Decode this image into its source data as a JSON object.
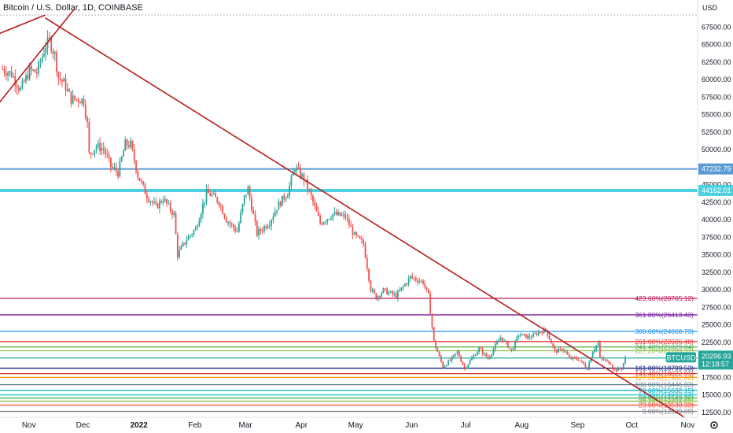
{
  "header": {
    "title": "Bitcoin / U.S. Dollar, 1D, COINBASE"
  },
  "colors": {
    "bull": "#26a69a",
    "bear": "#ef5350",
    "trendline": "#b71c1c",
    "blue_level": "#5b9bd5",
    "cyan_level": "#4dd0e1",
    "price_tag": "#26a69a"
  },
  "chart_data": {
    "type": "candlestick",
    "title": "Bitcoin / U.S. Dollar, 1D, COINBASE",
    "yaxis_unit": "USD",
    "ylim": [
      11000,
      69500
    ],
    "yticks": [
      "67500.00",
      "65000.00",
      "62500.00",
      "60000.00",
      "57500.00",
      "55000.00",
      "52500.00",
      "50000.00",
      "47500.00",
      "45000.00",
      "42500.00",
      "40000.00",
      "37500.00",
      "35000.00",
      "32500.00",
      "30000.00",
      "27500.00",
      "25000.00",
      "22500.00",
      "20000.00",
      "17500.00",
      "15000.00",
      "12500.00"
    ],
    "xtick_labels": [
      {
        "label": "Nov",
        "date": "2021-11-01",
        "bold": false
      },
      {
        "label": "Dec",
        "date": "2021-12-01",
        "bold": false
      },
      {
        "label": "2022",
        "date": "2022-01-01",
        "bold": true
      },
      {
        "label": "Feb",
        "date": "2022-02-01",
        "bold": false
      },
      {
        "label": "Mar",
        "date": "2022-03-01",
        "bold": false
      },
      {
        "label": "Apr",
        "date": "2022-04-01",
        "bold": false
      },
      {
        "label": "May",
        "date": "2022-05-01",
        "bold": false
      },
      {
        "label": "Jun",
        "date": "2022-06-01",
        "bold": false
      },
      {
        "label": "Jul",
        "date": "2022-07-01",
        "bold": false
      },
      {
        "label": "Aug",
        "date": "2022-08-01",
        "bold": false
      },
      {
        "label": "Sep",
        "date": "2022-09-01",
        "bold": false
      },
      {
        "label": "Oct",
        "date": "2022-10-01",
        "bold": false
      },
      {
        "label": "Nov",
        "date": "2022-11-01",
        "bold": false
      }
    ],
    "series_close": [
      {
        "date": "2021-10-17",
        "close": 61500
      },
      {
        "date": "2021-10-22",
        "close": 60800
      },
      {
        "date": "2021-10-27",
        "close": 58500
      },
      {
        "date": "2021-11-01",
        "close": 61300
      },
      {
        "date": "2021-11-05",
        "close": 61000
      },
      {
        "date": "2021-11-10",
        "close": 64900
      },
      {
        "date": "2021-11-12",
        "close": 65500
      },
      {
        "date": "2021-11-15",
        "close": 63500
      },
      {
        "date": "2021-11-17",
        "close": 60300
      },
      {
        "date": "2021-11-20",
        "close": 59500
      },
      {
        "date": "2021-11-24",
        "close": 57200
      },
      {
        "date": "2021-11-28",
        "close": 57200
      },
      {
        "date": "2021-12-01",
        "close": 57000
      },
      {
        "date": "2021-12-03",
        "close": 53600
      },
      {
        "date": "2021-12-04",
        "close": 49300
      },
      {
        "date": "2021-12-08",
        "close": 50500
      },
      {
        "date": "2021-12-12",
        "close": 50100
      },
      {
        "date": "2021-12-16",
        "close": 47600
      },
      {
        "date": "2021-12-20",
        "close": 46700
      },
      {
        "date": "2021-12-24",
        "close": 50800
      },
      {
        "date": "2021-12-27",
        "close": 50700
      },
      {
        "date": "2021-12-31",
        "close": 46300
      },
      {
        "date": "2022-01-05",
        "close": 43400
      },
      {
        "date": "2022-01-10",
        "close": 41800
      },
      {
        "date": "2022-01-14",
        "close": 43000
      },
      {
        "date": "2022-01-20",
        "close": 40700
      },
      {
        "date": "2022-01-22",
        "close": 35000
      },
      {
        "date": "2022-01-27",
        "close": 37200
      },
      {
        "date": "2022-02-01",
        "close": 38700
      },
      {
        "date": "2022-02-07",
        "close": 43800
      },
      {
        "date": "2022-02-10",
        "close": 43500
      },
      {
        "date": "2022-02-14",
        "close": 42500
      },
      {
        "date": "2022-02-18",
        "close": 40000
      },
      {
        "date": "2022-02-24",
        "close": 38300
      },
      {
        "date": "2022-02-28",
        "close": 43200
      },
      {
        "date": "2022-03-02",
        "close": 44400
      },
      {
        "date": "2022-03-07",
        "close": 38000
      },
      {
        "date": "2022-03-14",
        "close": 39700
      },
      {
        "date": "2022-03-18",
        "close": 41800
      },
      {
        "date": "2022-03-24",
        "close": 43900
      },
      {
        "date": "2022-03-28",
        "close": 47500
      },
      {
        "date": "2022-04-02",
        "close": 45800
      },
      {
        "date": "2022-04-06",
        "close": 43200
      },
      {
        "date": "2022-04-11",
        "close": 39500
      },
      {
        "date": "2022-04-18",
        "close": 40800
      },
      {
        "date": "2022-04-25",
        "close": 40400
      },
      {
        "date": "2022-04-30",
        "close": 37700
      },
      {
        "date": "2022-05-05",
        "close": 36500
      },
      {
        "date": "2022-05-09",
        "close": 30100
      },
      {
        "date": "2022-05-12",
        "close": 28900
      },
      {
        "date": "2022-05-16",
        "close": 29900
      },
      {
        "date": "2022-05-23",
        "close": 29100
      },
      {
        "date": "2022-05-31",
        "close": 31800
      },
      {
        "date": "2022-06-07",
        "close": 31100
      },
      {
        "date": "2022-06-10",
        "close": 29100
      },
      {
        "date": "2022-06-13",
        "close": 22500
      },
      {
        "date": "2022-06-18",
        "close": 19000
      },
      {
        "date": "2022-06-22",
        "close": 19900
      },
      {
        "date": "2022-06-26",
        "close": 21100
      },
      {
        "date": "2022-06-30",
        "close": 18800
      },
      {
        "date": "2022-07-04",
        "close": 20200
      },
      {
        "date": "2022-07-08",
        "close": 21600
      },
      {
        "date": "2022-07-13",
        "close": 20200
      },
      {
        "date": "2022-07-18",
        "close": 22400
      },
      {
        "date": "2022-07-20",
        "close": 23200
      },
      {
        "date": "2022-07-26",
        "close": 21300
      },
      {
        "date": "2022-07-30",
        "close": 23600
      },
      {
        "date": "2022-08-05",
        "close": 23200
      },
      {
        "date": "2022-08-10",
        "close": 23900
      },
      {
        "date": "2022-08-14",
        "close": 24300
      },
      {
        "date": "2022-08-19",
        "close": 21200
      },
      {
        "date": "2022-08-24",
        "close": 21500
      },
      {
        "date": "2022-08-27",
        "close": 20200
      },
      {
        "date": "2022-09-01",
        "close": 20100
      },
      {
        "date": "2022-09-06",
        "close": 18800
      },
      {
        "date": "2022-09-09",
        "close": 21300
      },
      {
        "date": "2022-09-12",
        "close": 22400
      },
      {
        "date": "2022-09-13",
        "close": 20200
      },
      {
        "date": "2022-09-19",
        "close": 19500
      },
      {
        "date": "2022-09-21",
        "close": 18500
      },
      {
        "date": "2022-09-25",
        "close": 18800
      },
      {
        "date": "2022-09-27",
        "close": 20297
      }
    ],
    "horizontal_levels": [
      {
        "price": 47232.79,
        "label": "47232.79",
        "color": "#5b9bd5"
      },
      {
        "price": 44162.01,
        "label": "44162.01",
        "color": "#4dd0e1"
      }
    ],
    "fib_levels": [
      {
        "pct": "423.60%",
        "price": 28765.12,
        "label": "423.60%(28765.12)",
        "color": "#c2185b"
      },
      {
        "pct": "361.80%",
        "price": 26413.43,
        "label": "361.80%(26413.43)",
        "color": "#7b1fa2"
      },
      {
        "pct": "300.00%",
        "price": 24060.73,
        "label": "300.00%(24060.73)",
        "color": "#2196f3"
      },
      {
        "pct": "261.80%",
        "price": 22606.48,
        "label": "261.80%(22606.48)",
        "color": "#e53935"
      },
      {
        "pct": "241.40%",
        "price": 21829.84,
        "label": "241.40%(21829.84)",
        "color": "#4caf50"
      },
      {
        "pct": "227.20%",
        "price": 21289.37,
        "label": "227.20%(21289.37)",
        "color": "#8bc34a"
      },
      {
        "pct": "200.00%",
        "price": 20254.53,
        "label": "200.00%(",
        "color": "#26a69a"
      },
      {
        "pct": "161.80%",
        "price": 18799.53,
        "label": "161.80%(18799.53)",
        "color": "#1a237e"
      },
      {
        "pct": "141.40%",
        "price": 18022.91,
        "label": "141.40%(18022.91)",
        "color": "#d32f2f"
      },
      {
        "pct": "127.20%",
        "price": 17482.42,
        "label": "127.20%(17482.42)",
        "color": "#ff9800"
      },
      {
        "pct": "100.00%",
        "price": 16446.83,
        "label": "100.00%(16446.83)",
        "color": "#607d8b"
      },
      {
        "pct": "78.60%",
        "price": 15632.15,
        "label": "78.60%(15632.15)",
        "color": "#00acc1"
      },
      {
        "pct": "61.80%",
        "price": 14992.64,
        "label": "61.80%(14992.64)",
        "color": "#26c6da"
      },
      {
        "pct": "50.00%",
        "price": 14543.36,
        "label": "50.00%(14543.36)",
        "color": "#4caf50"
      },
      {
        "pct": "38.20%",
        "price": 14094.09,
        "label": "38.20%(14094.09)",
        "color": "#8bc34a"
      },
      {
        "pct": "23.60%",
        "price": 13538.33,
        "label": "23.60%(13538.33)",
        "color": "#f44336"
      },
      {
        "pct": "0.00%",
        "price": 12639.89,
        "label": "0.00%(12639.89)",
        "color": "#787b86"
      }
    ],
    "trendline": {
      "from": {
        "date": "2021-11-10",
        "price": 68800
      },
      "to": {
        "date": "2022-11-01",
        "price": 11500
      }
    },
    "wedge_lines": [
      {
        "from": {
          "date": "2021-10-15",
          "price": 66500
        },
        "to": {
          "date": "2021-11-10",
          "price": 69200
        }
      },
      {
        "from": {
          "date": "2021-10-15",
          "price": 56500
        },
        "to": {
          "date": "2021-11-26",
          "price": 70000
        }
      }
    ],
    "current_price": {
      "symbol": "BTCUSD",
      "price": 20296.93,
      "label": "20296.93",
      "countdown": "12:18:57"
    }
  }
}
